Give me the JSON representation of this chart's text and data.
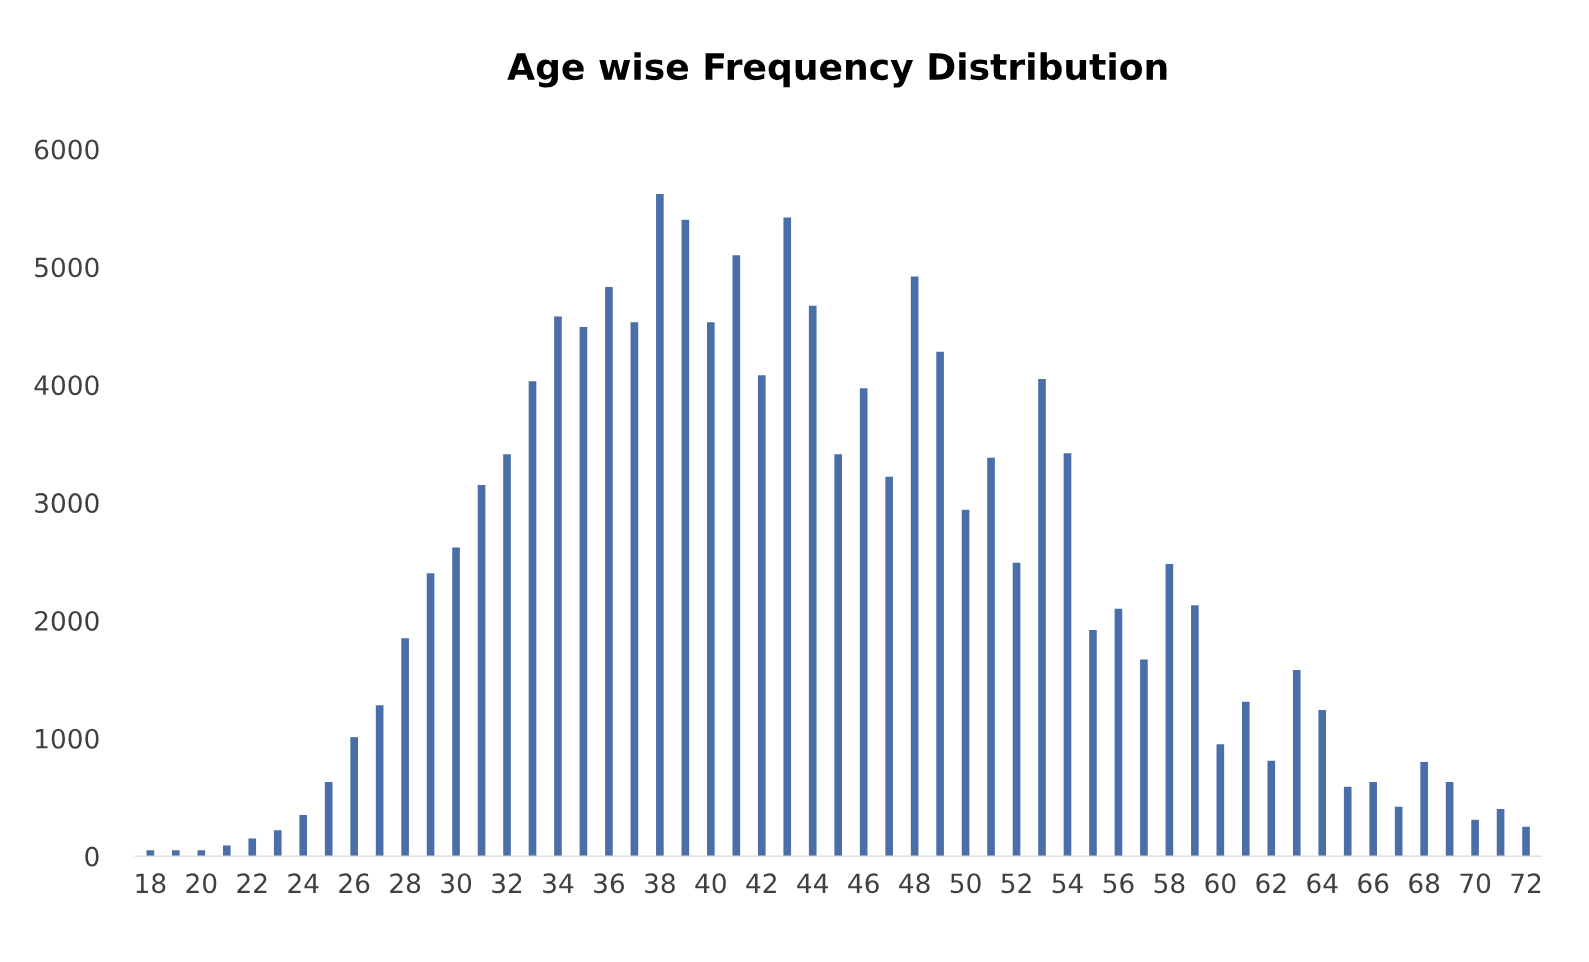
{
  "chart_data": {
    "type": "bar",
    "title": "Age wise Frequency Distribution",
    "categories": [
      "18",
      null,
      "20",
      null,
      "22",
      null,
      "24",
      null,
      "26",
      null,
      "28",
      null,
      "30",
      null,
      "32",
      null,
      "34",
      null,
      "36",
      null,
      "38",
      null,
      "40",
      null,
      "42",
      null,
      "44",
      null,
      "46",
      null,
      "48",
      null,
      "50",
      null,
      "52",
      null,
      "54",
      null,
      "56",
      null,
      "58",
      null,
      "60",
      null,
      "62",
      null,
      "64",
      null,
      "66",
      null,
      "68",
      null,
      "70",
      null,
      "72"
    ],
    "values": [
      50,
      50,
      50,
      90,
      150,
      220,
      350,
      630,
      1010,
      1280,
      1850,
      2400,
      2620,
      3150,
      3410,
      4030,
      4580,
      4490,
      4830,
      4530,
      5620,
      5400,
      4530,
      5100,
      4080,
      5420,
      4670,
      3410,
      3970,
      3220,
      4920,
      4280,
      2940,
      3380,
      2490,
      4050,
      3420,
      1920,
      2100,
      1670,
      2480,
      2130,
      950,
      1310,
      810,
      1580,
      1240,
      590,
      630,
      420,
      800,
      630,
      310,
      400,
      250
    ],
    "color": "#4a6fa8",
    "ylim": [
      0,
      6000
    ],
    "yticks": [
      0,
      1000,
      2000,
      3000,
      4000,
      5000,
      6000
    ],
    "grid": false
  }
}
